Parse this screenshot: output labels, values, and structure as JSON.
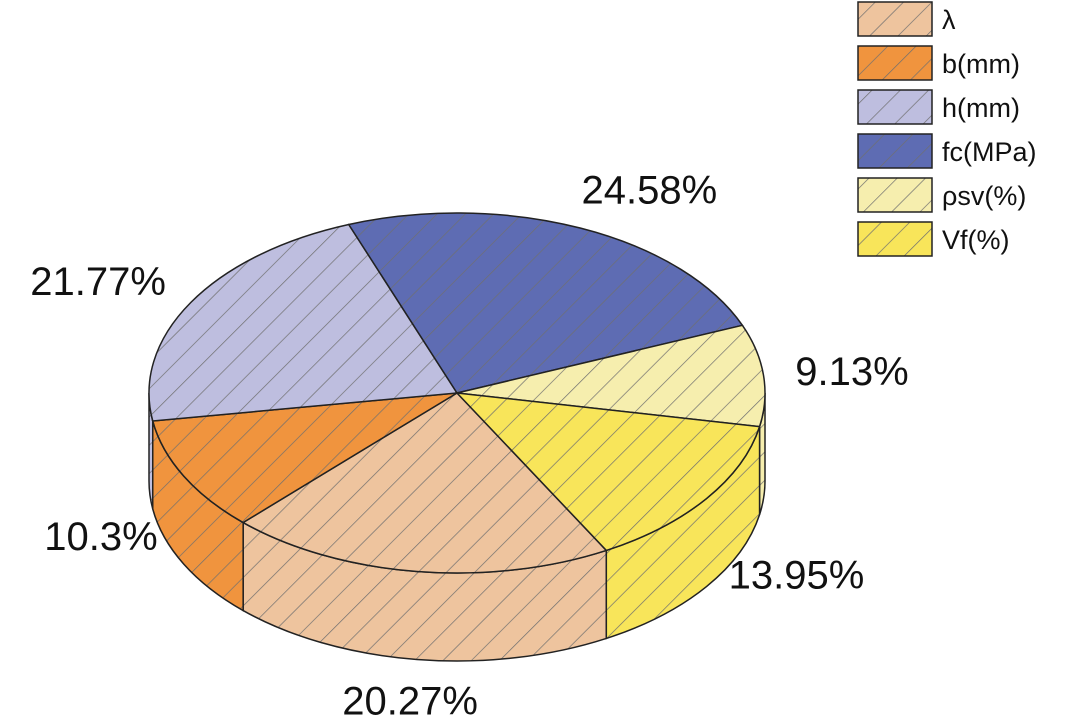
{
  "chart_data": {
    "type": "pie",
    "style": "3d-exploded-none, hatched",
    "title": "",
    "slices": [
      {
        "name": "λ",
        "value": 20.27,
        "label": "20.27%",
        "color": "#EEC49E"
      },
      {
        "name": "b(mm)",
        "value": 10.3,
        "label": "10.3%",
        "color": "#F0943E"
      },
      {
        "name": "h(mm)",
        "value": 21.77,
        "label": "21.77%",
        "color": "#BEBEDF"
      },
      {
        "name": "fc(MPa)",
        "value": 24.58,
        "label": "24.58%",
        "color": "#5E6CB3"
      },
      {
        "name": "ρsv(%)",
        "value": 9.13,
        "label": "9.13%",
        "color": "#F6EEAE"
      },
      {
        "name": "Vf(%)",
        "value": 13.95,
        "label": "13.95%",
        "color": "#F8E55A"
      }
    ],
    "legend": {
      "position": "top-right"
    }
  }
}
